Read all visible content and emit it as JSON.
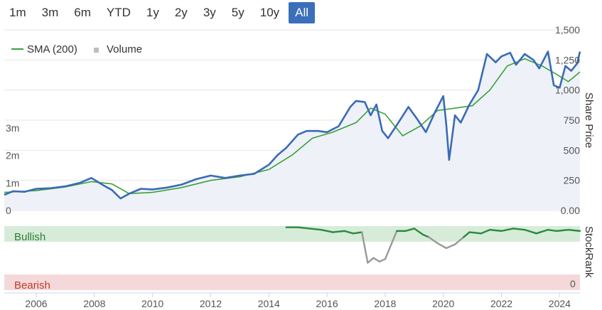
{
  "range_buttons": [
    {
      "label": "1m",
      "active": false
    },
    {
      "label": "3m",
      "active": false
    },
    {
      "label": "6m",
      "active": false
    },
    {
      "label": "YTD",
      "active": false
    },
    {
      "label": "1y",
      "active": false
    },
    {
      "label": "2y",
      "active": false
    },
    {
      "label": "3y",
      "active": false
    },
    {
      "label": "5y",
      "active": false
    },
    {
      "label": "10y",
      "active": false
    },
    {
      "label": "All",
      "active": true
    }
  ],
  "legend": {
    "sma_label": "SMA (200)",
    "volume_label": "Volume"
  },
  "colors": {
    "price": "#3a6bb5",
    "sma": "#3aa13a",
    "volume": "#bdbdbd",
    "area": "#eef1f8",
    "bullish_band": "#d6ecd9",
    "bearish_band": "#f5d9da",
    "rank_green": "#2a8a3e",
    "rank_gray": "#999999",
    "bullish_text": "#2e7d32",
    "bearish_text": "#c0392b",
    "active_btn": "#3b6fba"
  },
  "chart_data": [
    {
      "type": "line",
      "y_axis_title": "Share Price",
      "y_ticks": [
        "1,500",
        "1,250",
        "1,000",
        "750",
        "500",
        "250",
        "0.00"
      ],
      "ylim": [
        0,
        1500
      ],
      "volume_ticks": [
        "3m",
        "2m",
        "1m",
        "0"
      ],
      "volume_ylim": [
        0,
        3000000
      ],
      "x_ticks": [
        "2006",
        "2008",
        "2010",
        "2012",
        "2014",
        "2016",
        "2018",
        "2020",
        "2022",
        "2024"
      ],
      "xlim": [
        2004.9,
        2024.7
      ],
      "series": [
        {
          "name": "Price",
          "x": [
            2004.9,
            2005.2,
            2005.6,
            2006.0,
            2006.5,
            2007.0,
            2007.5,
            2007.9,
            2008.3,
            2008.6,
            2008.9,
            2009.2,
            2009.6,
            2010.0,
            2010.5,
            2011.0,
            2011.5,
            2012.0,
            2012.5,
            2013.0,
            2013.5,
            2014.0,
            2014.3,
            2014.6,
            2015.0,
            2015.3,
            2015.7,
            2016.0,
            2016.4,
            2016.8,
            2017.0,
            2017.3,
            2017.5,
            2017.7,
            2017.9,
            2018.1,
            2018.4,
            2018.8,
            2019.1,
            2019.4,
            2019.7,
            2020.0,
            2020.1,
            2020.2,
            2020.4,
            2020.6,
            2020.9,
            2021.2,
            2021.5,
            2021.8,
            2022.0,
            2022.3,
            2022.5,
            2022.8,
            2023.1,
            2023.3,
            2023.6,
            2023.8,
            2024.0,
            2024.2,
            2024.4,
            2024.6,
            2024.7
          ],
          "y": [
            130,
            160,
            155,
            180,
            185,
            200,
            230,
            270,
            210,
            170,
            100,
            140,
            180,
            175,
            190,
            215,
            260,
            290,
            270,
            290,
            305,
            380,
            460,
            520,
            630,
            660,
            660,
            650,
            700,
            860,
            910,
            900,
            790,
            880,
            660,
            600,
            710,
            860,
            760,
            650,
            810,
            950,
            720,
            420,
            790,
            730,
            880,
            1000,
            1300,
            1230,
            1280,
            1310,
            1210,
            1300,
            1250,
            1180,
            1320,
            1040,
            1020,
            1200,
            1160,
            1220,
            1320
          ]
        },
        {
          "name": "SMA (200)",
          "x": [
            2004.9,
            2006.0,
            2007.0,
            2007.9,
            2008.6,
            2009.2,
            2010.0,
            2011.0,
            2012.0,
            2013.0,
            2014.0,
            2014.8,
            2015.5,
            2016.2,
            2017.0,
            2017.5,
            2018.0,
            2018.6,
            2019.2,
            2019.8,
            2020.4,
            2021.0,
            2021.6,
            2022.2,
            2022.8,
            2023.4,
            2023.9,
            2024.3,
            2024.7
          ],
          "y": [
            150,
            165,
            195,
            240,
            220,
            140,
            150,
            190,
            250,
            280,
            340,
            460,
            600,
            650,
            730,
            850,
            800,
            620,
            700,
            830,
            850,
            870,
            1000,
            1200,
            1260,
            1200,
            1130,
            1070,
            1150
          ]
        }
      ]
    },
    {
      "type": "line",
      "y_axis_title": "StockRank",
      "bands": [
        "Bullish",
        "Bearish"
      ],
      "y_ticks": [
        "0"
      ],
      "ylim": [
        0,
        100
      ],
      "series": [
        {
          "name": "StockRank",
          "x": [
            2014.6,
            2015.0,
            2015.8,
            2016.2,
            2016.6,
            2016.9,
            2017.2,
            2017.4,
            2017.6,
            2017.8,
            2018.0,
            2018.4,
            2018.7,
            2019.0,
            2019.3,
            2019.5,
            2019.8,
            2020.1,
            2020.4,
            2020.7,
            2020.9,
            2021.3,
            2021.6,
            2022.0,
            2022.4,
            2022.8,
            2023.2,
            2023.6,
            2023.9,
            2024.3,
            2024.7
          ],
          "y": [
            98,
            98,
            94,
            90,
            92,
            88,
            90,
            40,
            48,
            42,
            46,
            92,
            92,
            96,
            86,
            82,
            72,
            64,
            70,
            82,
            90,
            88,
            94,
            92,
            96,
            94,
            88,
            94,
            92,
            94,
            92
          ]
        }
      ]
    }
  ]
}
